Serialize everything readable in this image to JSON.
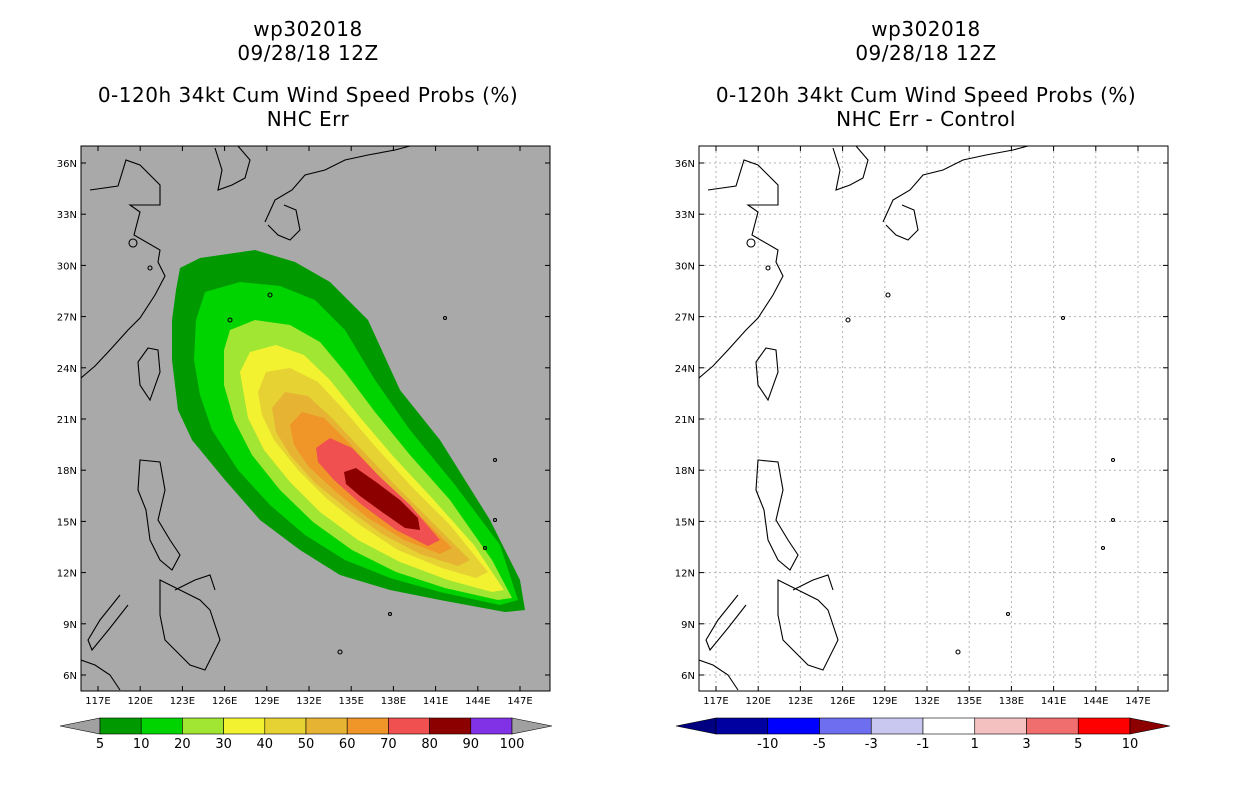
{
  "left_panel": {
    "storm_id": "wp302018",
    "date": "09/28/18 12Z",
    "product": "0-120h 34kt Cum Wind Speed Probs (%)",
    "subtitle": "NHC Err",
    "lat_labels": [
      "36N",
      "33N",
      "30N",
      "27N",
      "24N",
      "21N",
      "18N",
      "15N",
      "12N",
      "9N",
      "6N"
    ],
    "lon_labels": [
      "117E",
      "120E",
      "123E",
      "126E",
      "129E",
      "132E",
      "135E",
      "138E",
      "141E",
      "144E",
      "147E"
    ],
    "colorbar": {
      "labels": [
        "5",
        "10",
        "20",
        "30",
        "40",
        "50",
        "60",
        "70",
        "80",
        "90",
        "100"
      ],
      "colors": [
        "#009a00",
        "#00d400",
        "#a0e632",
        "#f2f230",
        "#e6d232",
        "#e6b432",
        "#f09628",
        "#f05050",
        "#8c0000",
        "#8232e6"
      ],
      "under_color": "#a0a0a0",
      "over_color": "#a0a0a0"
    },
    "background_color": "#a9a9a9"
  },
  "right_panel": {
    "storm_id": "wp302018",
    "date": "09/28/18 12Z",
    "product": "0-120h 34kt Cum Wind Speed Probs (%)",
    "subtitle": "NHC Err - Control",
    "lat_labels": [
      "36N",
      "33N",
      "30N",
      "27N",
      "24N",
      "21N",
      "18N",
      "15N",
      "12N",
      "9N",
      "6N"
    ],
    "lon_labels": [
      "117E",
      "120E",
      "123E",
      "126E",
      "129E",
      "132E",
      "135E",
      "138E",
      "141E",
      "144E",
      "147E"
    ],
    "colorbar": {
      "labels": [
        "-10",
        "-5",
        "-3",
        "-1",
        "1",
        "3",
        "5",
        "10"
      ],
      "colors": [
        "#0000a0",
        "#0000ff",
        "#6e6ef0",
        "#c8c8f0",
        "#ffffff",
        "#f5c0c0",
        "#f06e6e",
        "#ff0000"
      ],
      "under_color": "#000080",
      "over_color": "#8c0000"
    },
    "background_color": "#ffffff"
  }
}
